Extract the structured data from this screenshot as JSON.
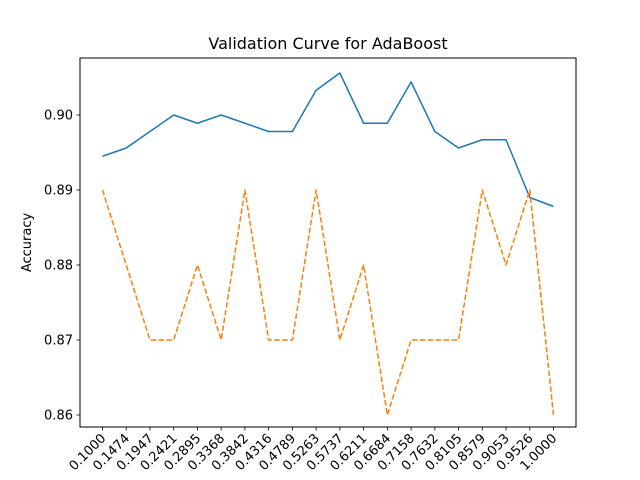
{
  "chart_data": {
    "type": "line",
    "title": "Validation Curve for AdaBoost",
    "xlabel": "",
    "ylabel": "Accuracy",
    "categories": [
      "0.1000",
      "0.1474",
      "0.1947",
      "0.2421",
      "0.2895",
      "0.3368",
      "0.3842",
      "0.4316",
      "0.4789",
      "0.5263",
      "0.5737",
      "0.6211",
      "0.6684",
      "0.7158",
      "0.7632",
      "0.8105",
      "0.8579",
      "0.9053",
      "0.9526",
      "1.0000"
    ],
    "ylim": [
      0.8584,
      0.9076
    ],
    "yticks": [
      0.86,
      0.87,
      0.88,
      0.89,
      0.9
    ],
    "ytick_labels": [
      "0.86",
      "0.87",
      "0.88",
      "0.89",
      "0.90"
    ],
    "grid": false,
    "series": [
      {
        "color": "#1f77b4",
        "linestyle": "solid",
        "values": [
          0.8945,
          0.8956,
          0.8978,
          0.9,
          0.8989,
          0.9,
          0.8989,
          0.8978,
          0.8978,
          0.9033,
          0.9056,
          0.8989,
          0.8989,
          0.9044,
          0.8978,
          0.8956,
          0.8967,
          0.8967,
          0.889,
          0.8878
        ]
      },
      {
        "color": "#ff7f0e",
        "linestyle": "dashed",
        "values": [
          0.89,
          0.88,
          0.87,
          0.87,
          0.88,
          0.87,
          0.89,
          0.87,
          0.87,
          0.89,
          0.87,
          0.88,
          0.86,
          0.87,
          0.87,
          0.87,
          0.89,
          0.88,
          0.89,
          0.86
        ]
      }
    ]
  }
}
